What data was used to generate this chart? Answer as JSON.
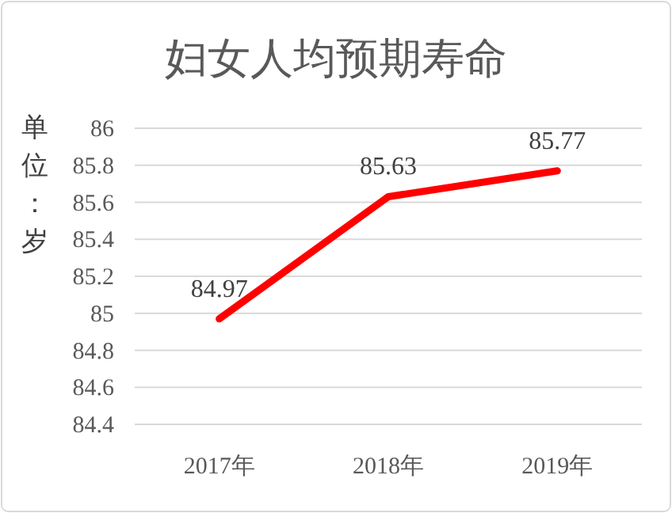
{
  "chart_data": {
    "type": "line",
    "title": "妇女人均预期寿命",
    "ylabel": "单位：岁",
    "categories": [
      "2017年",
      "2018年",
      "2019年"
    ],
    "series": [
      {
        "color": "#ff0000",
        "values": [
          84.97,
          85.63,
          85.77
        ]
      }
    ],
    "ylim": [
      84.4,
      86
    ],
    "yticks": [
      84.4,
      84.6,
      84.8,
      85,
      85.2,
      85.4,
      85.6,
      85.8,
      86
    ],
    "grid": "y",
    "marker": "none",
    "line_style": "solid",
    "data_labels": true
  }
}
